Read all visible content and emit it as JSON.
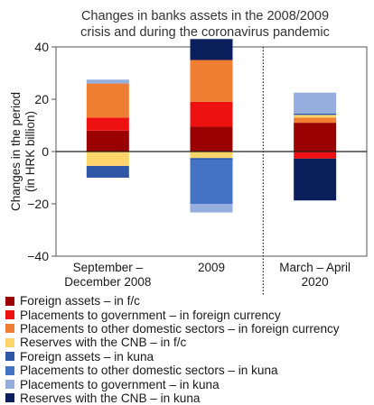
{
  "chart_data": {
    "type": "bar",
    "stacked": true,
    "title_lines": [
      "Changes in banks assets in the 2008/2009",
      "crisis and during the coronavirus pandemic"
    ],
    "ylabel_lines": [
      "Changes in the period",
      "(in HRK billion)"
    ],
    "ylim": [
      -40,
      40
    ],
    "yticks": [
      "40",
      "20",
      "0",
      "−20",
      "−40"
    ],
    "ytick_values": [
      40,
      20,
      0,
      -20,
      -40
    ],
    "categories": [
      {
        "lines": [
          "September –",
          "December 2008"
        ]
      },
      {
        "lines": [
          "2009"
        ]
      },
      {
        "lines": [
          "March – April",
          "2020"
        ]
      }
    ],
    "divider_after_category": 1,
    "series": [
      {
        "name": "Foreign assets – in f/c",
        "color": "#9b0000",
        "values": [
          8,
          9.5,
          11
        ]
      },
      {
        "name": "Placements to government – in foreign currency",
        "color": "#ee1111",
        "values": [
          5,
          9.5,
          -2.7
        ]
      },
      {
        "name": "Placements to other domestic sectors – in foreign currency",
        "color": "#ef7d32",
        "values": [
          13,
          16,
          2
        ]
      },
      {
        "name": "Reserves with the CNB – in f/c",
        "color": "#fdd46a",
        "values": [
          -5.5,
          -2.5,
          1
        ]
      },
      {
        "name": "Foreign assets – in kuna",
        "color": "#2e58a5",
        "values": [
          -4.5,
          -0.6,
          0.5
        ]
      },
      {
        "name": "Placements to other domestic sectors – in kuna",
        "color": "#4472c4",
        "values": [
          0,
          -17,
          0
        ]
      },
      {
        "name": "Placements to government – in kuna",
        "color": "#96aedd",
        "values": [
          1.5,
          -3.2,
          8
        ]
      },
      {
        "name": "Reserves with the CNB – in kuna",
        "color": "#0b1f5c",
        "values": [
          0,
          8,
          -16
        ]
      }
    ]
  }
}
